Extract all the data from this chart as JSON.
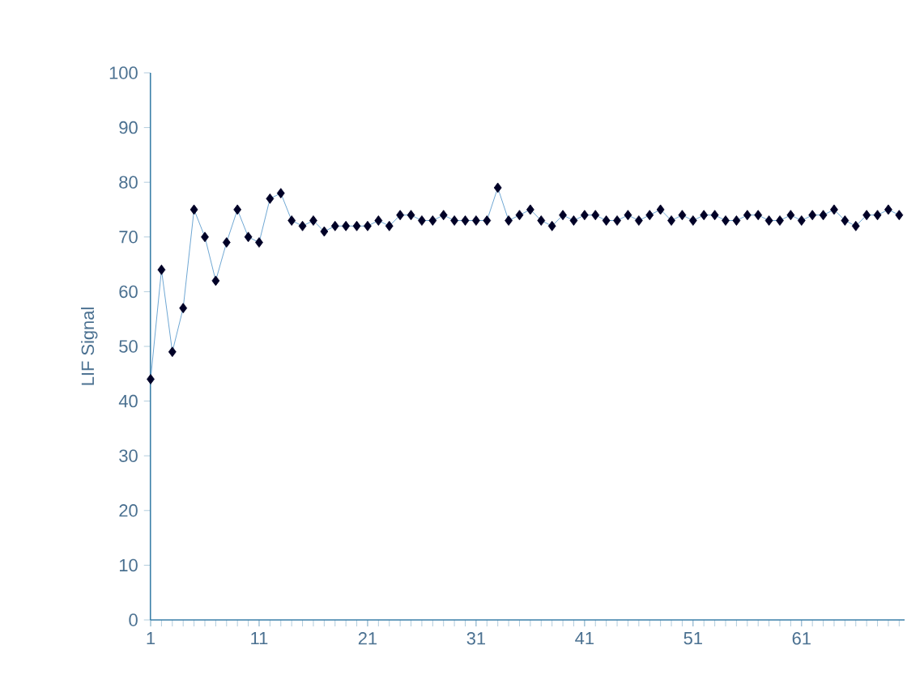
{
  "chart_data": {
    "type": "line",
    "ylabel": "LIF Signal",
    "categories": [
      "1",
      null,
      null,
      null,
      null,
      null,
      null,
      null,
      null,
      null,
      "11",
      null,
      null,
      null,
      null,
      null,
      null,
      null,
      null,
      null,
      "21",
      null,
      null,
      null,
      null,
      null,
      null,
      null,
      null,
      null,
      "31",
      null,
      null,
      null,
      null,
      null,
      null,
      null,
      null,
      null,
      "41",
      null,
      null,
      null,
      null,
      null,
      null,
      null,
      null,
      null,
      "51",
      null,
      null,
      null,
      null,
      null,
      null,
      null,
      null,
      null,
      "61",
      null,
      null,
      null,
      null,
      null,
      null,
      null,
      null,
      null
    ],
    "series": [
      {
        "color": "#4a90c8",
        "values": [
          44,
          64,
          49,
          57,
          75,
          70,
          62,
          69,
          75,
          70,
          69,
          77,
          78,
          73,
          72,
          73,
          71,
          72,
          72,
          72,
          72,
          73,
          72,
          74,
          74,
          73,
          73,
          74,
          73,
          73,
          73,
          73,
          79,
          73,
          74,
          75,
          73,
          72,
          74,
          73,
          74,
          74,
          73,
          73,
          74,
          73,
          74,
          75,
          73,
          74,
          73,
          74,
          74,
          73,
          73,
          74,
          74,
          73,
          73,
          74,
          73,
          74,
          74,
          75,
          73,
          72,
          74,
          74,
          75,
          74
        ]
      }
    ],
    "ylim": [
      0,
      100
    ],
    "yticks": [
      0,
      10,
      20,
      30,
      40,
      50,
      60,
      70,
      80,
      90,
      100
    ],
    "marker": "diamond"
  }
}
